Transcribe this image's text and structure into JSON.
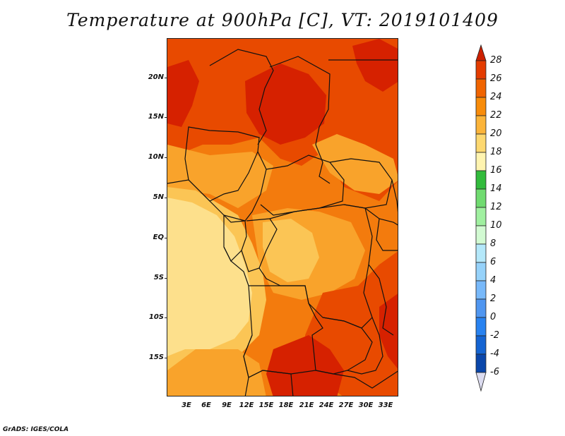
{
  "title": "Temperature at 900hPa [C], VT: 2019101409",
  "footer": "GrADS: IGES/COLA",
  "map": {
    "lat_labels": [
      "20N",
      "15N",
      "10N",
      "5N",
      "EQ",
      "5S",
      "10S",
      "15S"
    ],
    "lon_labels": [
      "3E",
      "6E",
      "9E",
      "12E",
      "15E",
      "18E",
      "21E",
      "24E",
      "27E",
      "30E",
      "33E"
    ]
  },
  "colorbar": {
    "levels": [
      "28",
      "26",
      "24",
      "22",
      "20",
      "18",
      "16",
      "14",
      "12",
      "10",
      "8",
      "6",
      "4",
      "2",
      "0",
      "-2",
      "-4",
      "-6"
    ],
    "colors": {
      "above_28": "#cc2000",
      "26_28": "#e43c00",
      "24_26": "#f06400",
      "22_24": "#f88c0a",
      "20_22": "#fbb43a",
      "18_20": "#fdd870",
      "16_18": "#fff4b0",
      "14_16": "#32bb3c",
      "12_14": "#70db70",
      "10_12": "#a0f0a0",
      "8_10": "#d2fad2",
      "6_8": "#b4e8fa",
      "4_6": "#96d2fa",
      "2_4": "#78b9fa",
      "0_2": "#5096f0",
      "m2_0": "#2882f0",
      "m4_m2": "#1464d2",
      "m6_m4": "#0a46aa",
      "below_m6": "#dcdcf0"
    }
  },
  "field_colors": {
    "t28": "#d62100",
    "t26": "#e84a00",
    "t24": "#f37b0d",
    "t22": "#f9a32b",
    "t20": "#fbc555",
    "t18": "#fde08c",
    "border": "#111111"
  }
}
